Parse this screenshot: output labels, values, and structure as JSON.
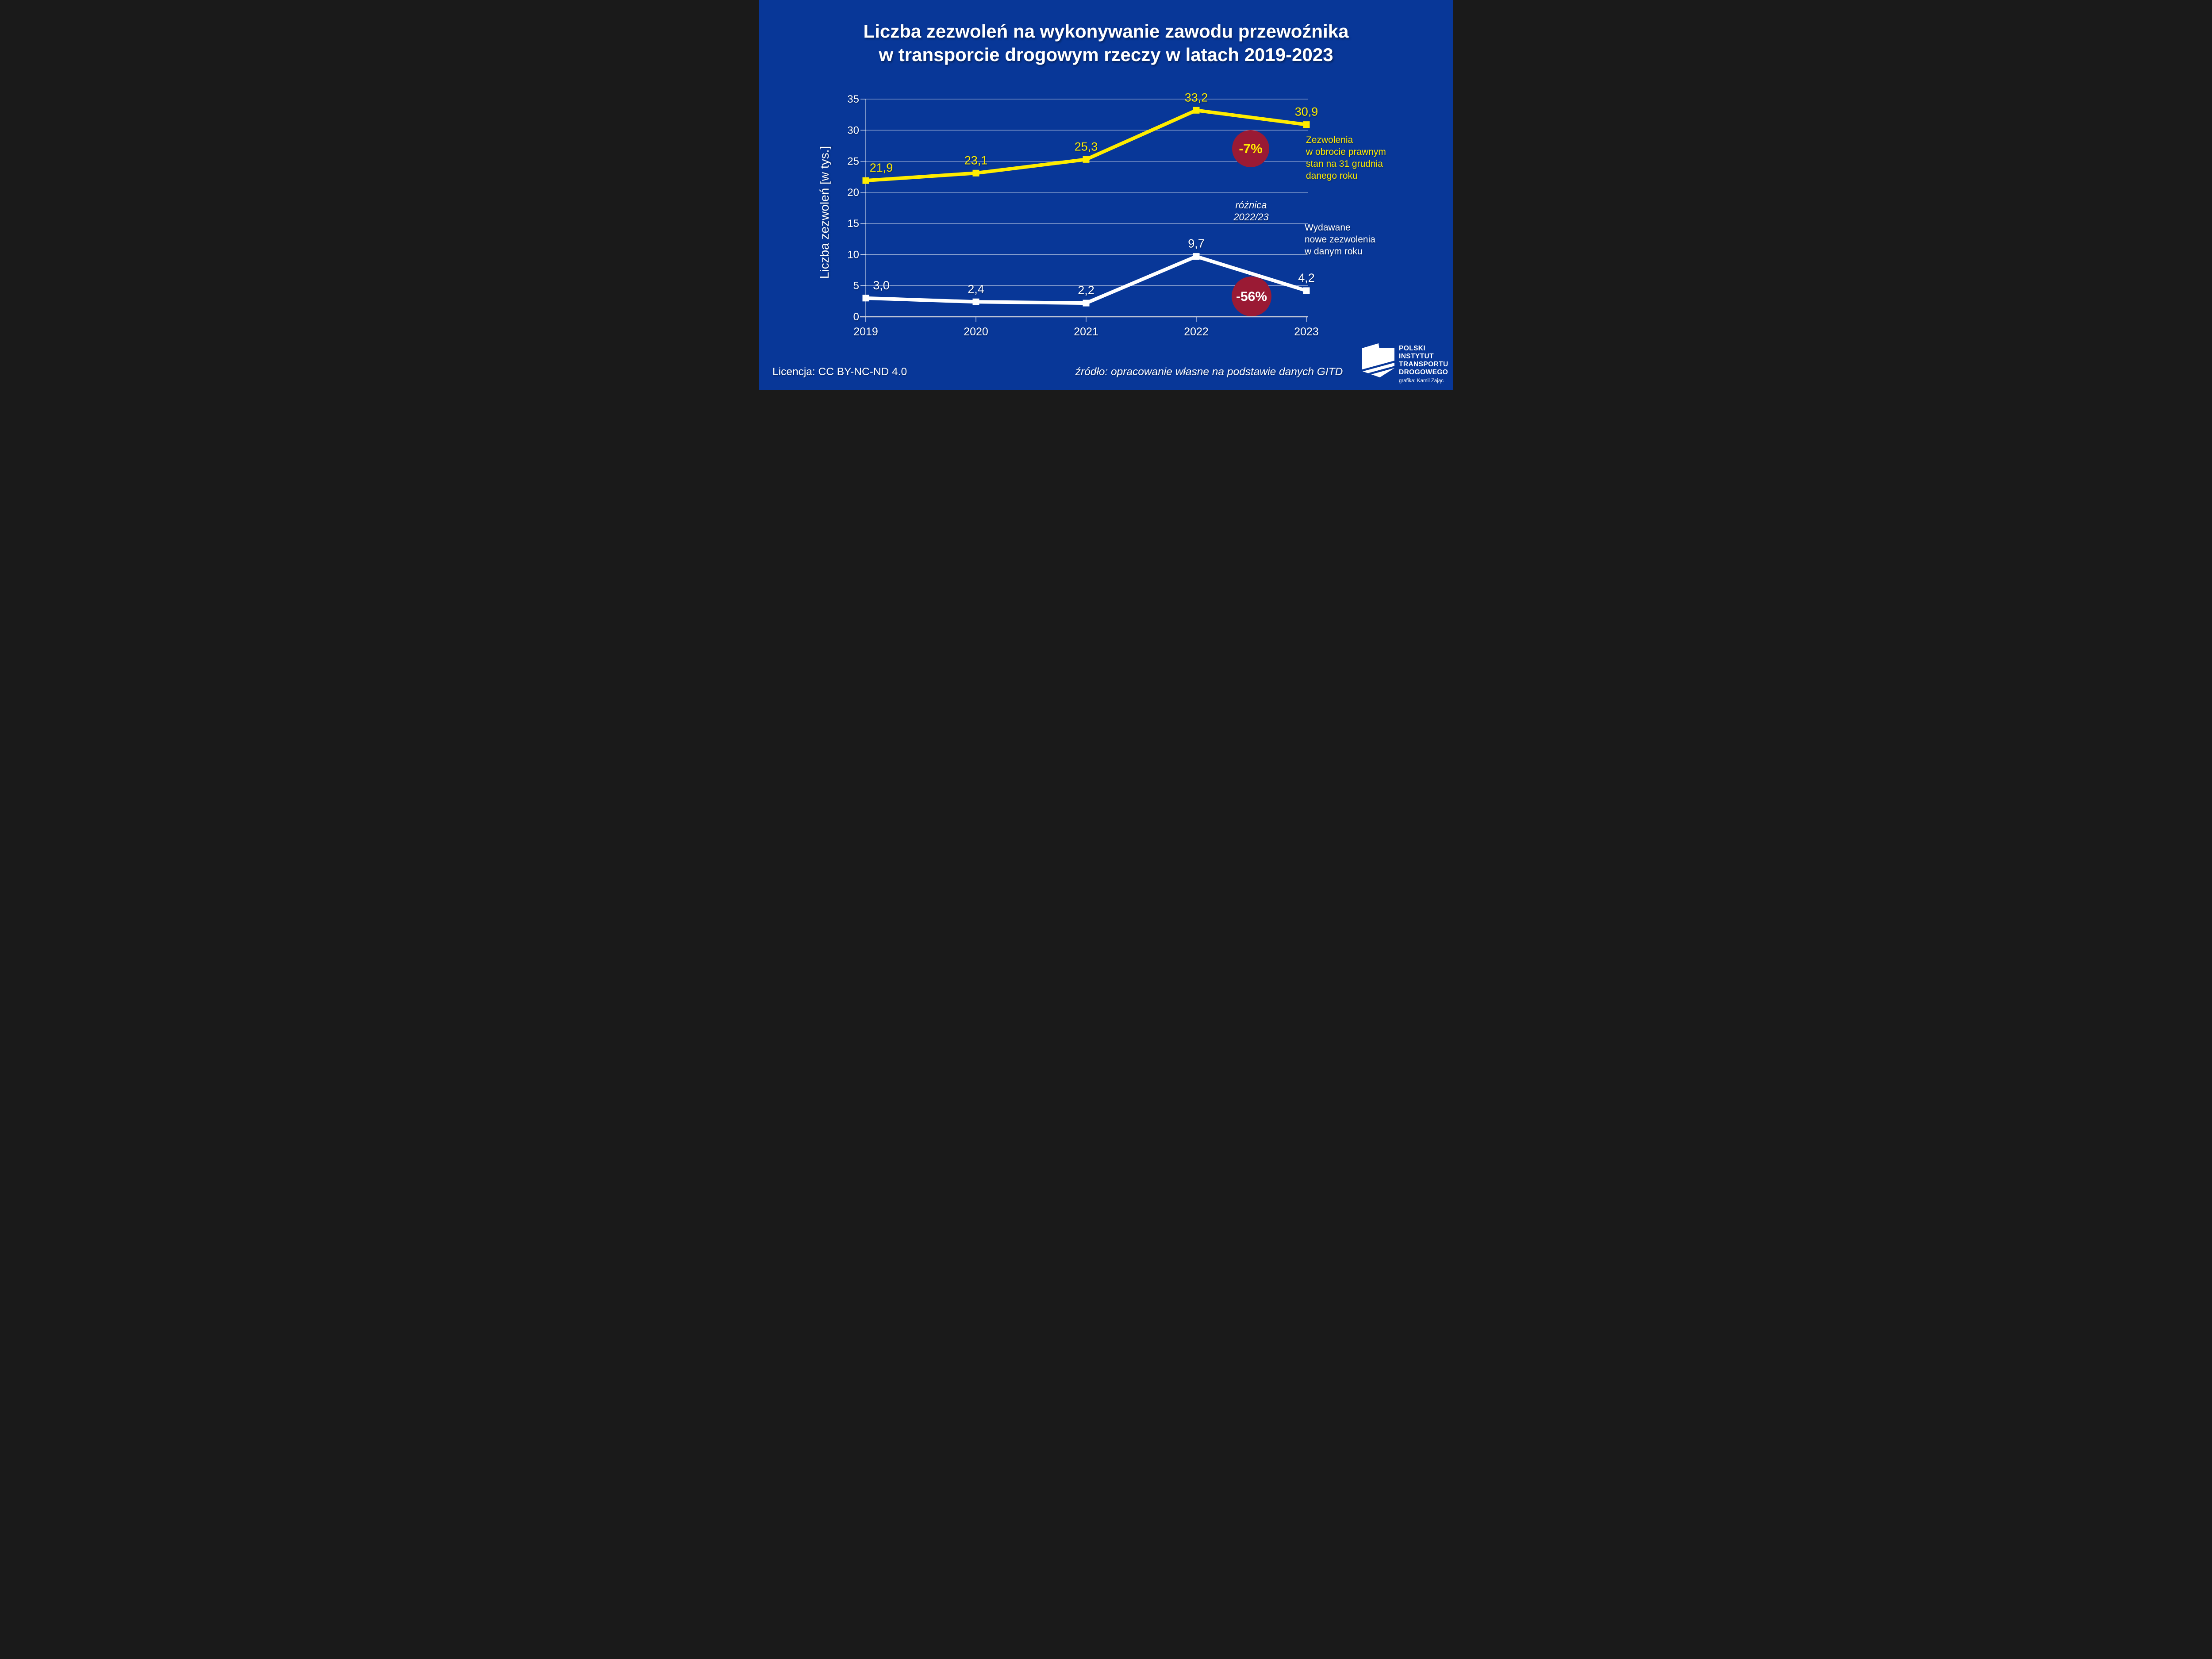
{
  "title": {
    "line1": "Liczba zezwoleń na wykonywanie zawodu przewoźnika",
    "line2": "w transporcie drogowym rzeczy w latach 2019-2023"
  },
  "colors": {
    "background": "#083798",
    "yellow": "#FFEC00",
    "white": "#FFFFFF",
    "badge_red": "#9A1A34",
    "axis_line": "#C6CBD9",
    "grid_line": "rgba(255,255,255,0.7)",
    "tick_line": "rgba(255,255,255,0.85)"
  },
  "chart_data": {
    "type": "line",
    "title": "Liczba zezwoleń na wykonywanie zawodu przewoźnika w transporcie drogowym rzeczy w latach 2019-2023",
    "categories": [
      "2019",
      "2020",
      "2021",
      "2022",
      "2023"
    ],
    "series": [
      {
        "name": "Zezwolenia w obrocie prawnym stan na 31 grudnia danego roku",
        "color": "#FFEC00",
        "marker": "square",
        "values": [
          21.9,
          23.1,
          25.3,
          33.2,
          30.9
        ]
      },
      {
        "name": "Wydawane nowe zezwolenia w danym roku",
        "color": "#FFFFFF",
        "marker": "square",
        "values": [
          3.0,
          2.4,
          2.2,
          9.7,
          4.2
        ]
      }
    ],
    "xlabel": "",
    "ylabel": "Liczba zezwoleń [w tys.]",
    "ylim": [
      0,
      35
    ],
    "yticks": [
      0,
      5,
      10,
      15,
      20,
      25,
      30,
      35
    ],
    "grid": "horizontal",
    "legend_position": "right",
    "value_labels": true,
    "decimal_separator": ",",
    "annotations": [
      {
        "text": "-7%",
        "applies_to": "series 0 change 2022/2023",
        "fill": "#9A1A34",
        "text_color": "#FFEC00"
      },
      {
        "text": "-56%",
        "applies_to": "series 1 change 2022/2023",
        "fill": "#9A1A34",
        "text_color": "#FFFFFF"
      },
      {
        "text": "różnica 2022/23",
        "style": "italic",
        "color": "#FFFFFF"
      }
    ]
  },
  "legend": {
    "permits": [
      "Zezwolenia",
      "w obrocie prawnym",
      "stan na 31 grudnia",
      "danego roku"
    ],
    "new_permits": [
      "Wydawane",
      "nowe zezwolenia",
      "w danym roku"
    ]
  },
  "note": {
    "line1": "różnica",
    "line2": "2022/23"
  },
  "footer": {
    "license": "Licencja: CC BY-NC-ND 4.0",
    "source": "źródło: opracowanie własne na podstawie danych GITD"
  },
  "logo": {
    "lines": [
      "POLSKI",
      "INSTYTUT",
      "TRANSPORTU",
      "DROGOWEGO"
    ],
    "credit": "grafika: Kamil Zając"
  }
}
